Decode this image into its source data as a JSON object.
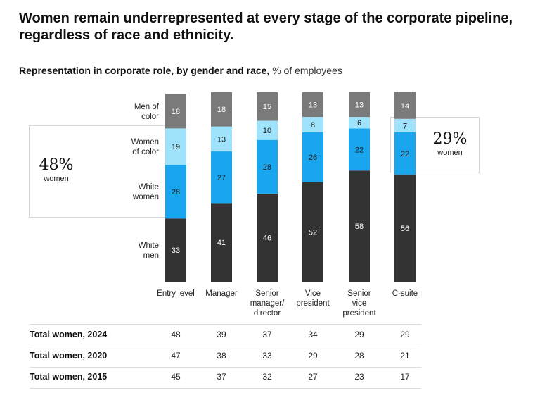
{
  "headline": "Women remain underrepresented at every stage of the corporate pipeline, regardless of race and ethnicity.",
  "subtitle": {
    "bold": "Representation in corporate role, by gender and race,",
    "unit": "% of employees"
  },
  "callouts": {
    "left": {
      "pct": "48%",
      "label": "women"
    },
    "right": {
      "pct": "29%",
      "label": "women"
    }
  },
  "colors": {
    "men_of_color": "#7a7a7a",
    "women_of_color": "#9ee3fb",
    "white_women": "#1aa6ee",
    "white_men": "#333333"
  },
  "chart_data": {
    "type": "bar",
    "stacked": true,
    "categories": [
      "Entry level",
      "Manager",
      "Senior manager/ director",
      "Vice president",
      "Senior vice president",
      "C-suite"
    ],
    "series": [
      {
        "name": "White men",
        "values": [
          33,
          41,
          46,
          52,
          58,
          56
        ]
      },
      {
        "name": "White women",
        "values": [
          28,
          27,
          28,
          26,
          22,
          22
        ]
      },
      {
        "name": "Women of color",
        "values": [
          19,
          13,
          10,
          8,
          6,
          7
        ]
      },
      {
        "name": "Men of color",
        "values": [
          18,
          18,
          15,
          13,
          13,
          14
        ]
      }
    ],
    "ylim": [
      0,
      100
    ]
  },
  "series_labels": {
    "men_of_color": [
      "Men of",
      "color"
    ],
    "women_of_color": [
      "Women",
      "of color"
    ],
    "white_women": [
      "White",
      "women"
    ],
    "white_men": [
      "White",
      "men"
    ]
  },
  "category_labels": [
    [
      "Entry level"
    ],
    [
      "Manager"
    ],
    [
      "Senior",
      "manager/",
      "director"
    ],
    [
      "Vice",
      "president"
    ],
    [
      "Senior",
      "vice",
      "president"
    ],
    [
      "C-suite"
    ]
  ],
  "table": {
    "rows": [
      {
        "label": "Total women, 2024",
        "values": [
          48,
          39,
          37,
          34,
          29,
          29
        ]
      },
      {
        "label": "Total women, 2020",
        "values": [
          47,
          38,
          33,
          29,
          28,
          21
        ]
      },
      {
        "label": "Total women, 2015",
        "values": [
          45,
          37,
          32,
          27,
          23,
          17
        ]
      }
    ]
  }
}
